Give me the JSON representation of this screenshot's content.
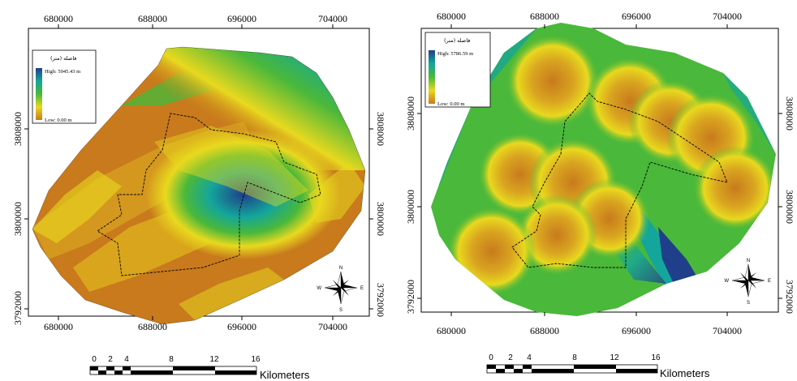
{
  "maps": [
    {
      "x_ticks_top": [
        "680000",
        "688000",
        "696000",
        "704000"
      ],
      "x_ticks_bottom": [
        "680000",
        "688000",
        "696000",
        "704000"
      ],
      "y_ticks_left": [
        "3808000",
        "3800000",
        "3792000"
      ],
      "y_ticks_right": [
        "3808000",
        "3800000",
        "3792000"
      ],
      "legend": {
        "title": "فاصله (متر)",
        "high": "High: 5945.43 m",
        "low": "Low: 0.00 m"
      },
      "compass": {
        "n": "N",
        "s": "S",
        "e": "E",
        "w": "W"
      },
      "scale_bar": {
        "ticks": [
          "0",
          "2",
          "4",
          "8",
          "12",
          "16"
        ],
        "unit": "Kilometers"
      }
    },
    {
      "x_ticks_top": [
        "680000",
        "688000",
        "696000",
        "704000"
      ],
      "x_ticks_bottom": [
        "680000",
        "688000",
        "696000",
        "704000"
      ],
      "y_ticks_left": [
        "3808000",
        "3800000",
        "3792000"
      ],
      "y_ticks_right": [
        "3808000",
        "3800000",
        "3792000"
      ],
      "legend": {
        "title": "فاصله (متر)",
        "high": "High: 5786.59 m",
        "low": "Low: 0.00 m"
      },
      "compass": {
        "n": "N",
        "s": "S",
        "e": "E",
        "w": "W"
      },
      "scale_bar": {
        "ticks": [
          "0",
          "2",
          "4",
          "8",
          "12",
          "16"
        ],
        "unit": "Kilometers"
      }
    }
  ],
  "colors": {
    "high": "#1f3f8a",
    "mid_high": "#14a69a",
    "mid": "#4ab83a",
    "mid_low": "#e8d91e",
    "low": "#c87a1c"
  }
}
